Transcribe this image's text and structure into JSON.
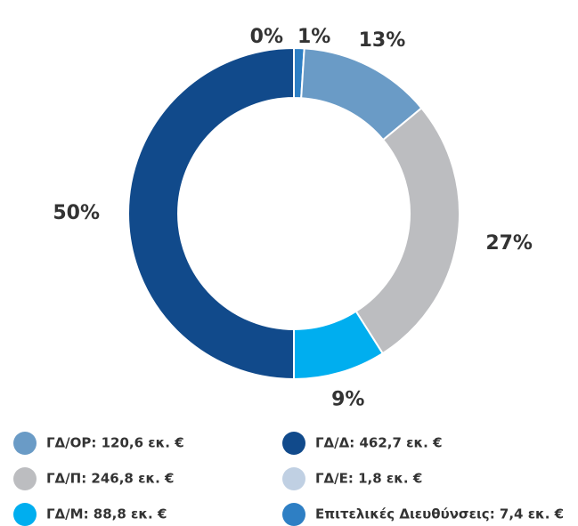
{
  "chart_data": {
    "type": "donut",
    "categories": [
      "Επιτελικές Διευθύνσεις: 7,4 εκ. €",
      "ΓΔ/ΟΡ: 120,6 εκ. €",
      "ΓΔ/Π: 246,8 εκ. €",
      "ΓΔ/Μ: 88,8 εκ. €",
      "ΓΔ/Δ: 462,7 εκ. €",
      "ΓΔ/Ε: 1,8 εκ. €"
    ],
    "values": [
      1,
      13,
      27,
      9,
      50,
      0
    ],
    "value_labels": [
      "1%",
      "13%",
      "27%",
      "9%",
      "50%",
      "0%"
    ],
    "colors": [
      "#2e7fc4",
      "#6a9bc6",
      "#bcbdc0",
      "#00aeef",
      "#114a8b",
      "#c0d0e3"
    ],
    "legend": "bottom"
  }
}
